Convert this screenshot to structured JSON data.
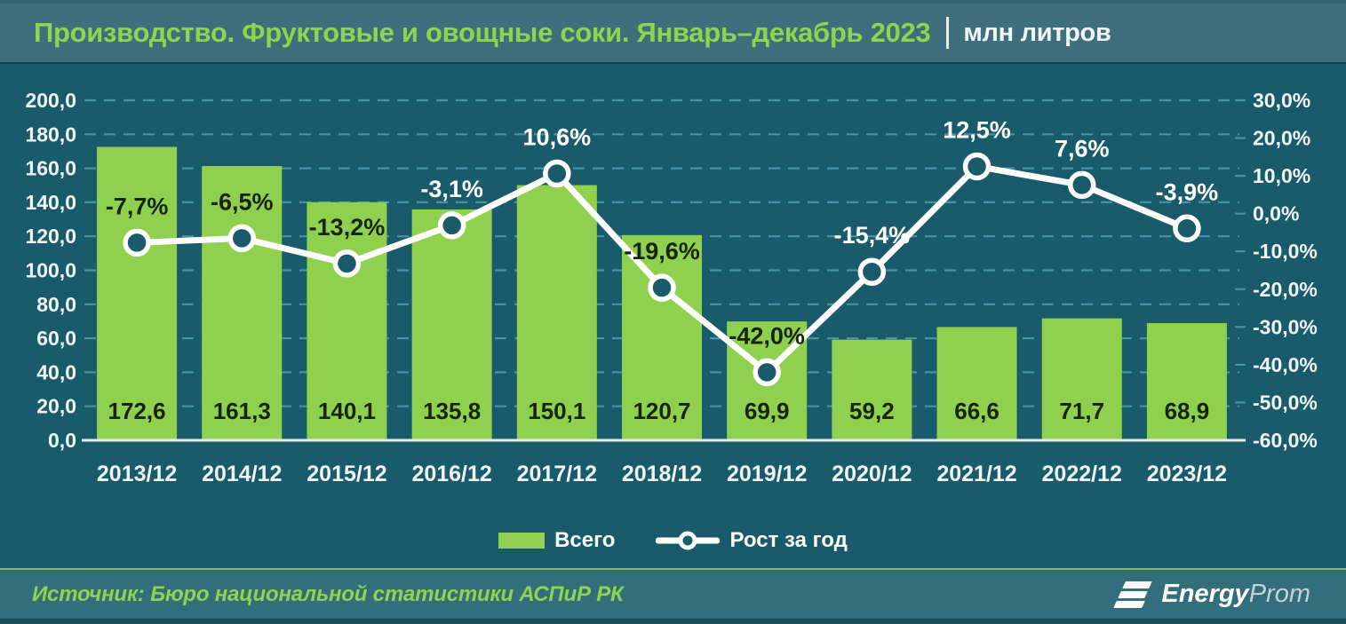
{
  "header": {
    "title_green": "Производство. Фруктовые и овощные соки. Январь–декабрь 2023",
    "title_white": "млн литров"
  },
  "legend": {
    "items": [
      {
        "label": "Всего",
        "swatch": "bar-swatch"
      },
      {
        "label": "Рост за год",
        "swatch": "line-swatch"
      }
    ]
  },
  "footer": {
    "source": "Источник: Бюро национальной статистики АСПиР РК",
    "logo": {
      "icon": "energyprom-logo-icon",
      "brand_bold": "Energy",
      "brand_light": "Prom"
    }
  },
  "colors": {
    "background": "#1a5b6b",
    "header_bg": "#3f6e7c",
    "footer_bg": "#346e7c",
    "bar_green": "#8fd04f",
    "title_green": "#8ed44e",
    "grid": "#4792a5",
    "line_white": "#ffffff",
    "axis_text": "#f0f6f8",
    "dark_label": "#18230c",
    "axis_line": "#e8eef0"
  },
  "chart_data": {
    "type": "bar",
    "combo": "bar+line",
    "title": "Производство. Фруктовые и овощные соки. Январь–декабрь 2023, млн литров",
    "categories": [
      "2013/12",
      "2014/12",
      "2015/12",
      "2016/12",
      "2017/12",
      "2018/12",
      "2019/12",
      "2020/12",
      "2021/12",
      "2022/12",
      "2023/12"
    ],
    "series": [
      {
        "name": "Всего",
        "type": "bar",
        "axis": "left",
        "values": [
          172.6,
          161.3,
          140.1,
          135.8,
          150.1,
          120.7,
          69.9,
          59.2,
          66.6,
          71.7,
          68.9
        ],
        "labels": [
          "172,6",
          "161,3",
          "140,1",
          "135,8",
          "150,1",
          "120,7",
          "69,9",
          "59,2",
          "66,6",
          "71,7",
          "68,9"
        ]
      },
      {
        "name": "Рост за год",
        "type": "line",
        "axis": "right",
        "values": [
          -7.7,
          -6.5,
          -13.2,
          -3.1,
          10.6,
          -19.6,
          -42.0,
          -15.4,
          12.5,
          7.6,
          -3.9
        ],
        "labels": [
          "-7,7%",
          "-6,5%",
          "-13,2%",
          "-3,1%",
          "10,6%",
          "-19,6%",
          "-42,0%",
          "-15,4%",
          "12,5%",
          "7,6%",
          "-3,9%"
        ],
        "label_styles": [
          "dark",
          "dark",
          "dark",
          "light",
          "light",
          "dark",
          "dark",
          "light",
          "light",
          "light",
          "light"
        ]
      }
    ],
    "left_axis": {
      "min": 0,
      "max": 200,
      "step": 20,
      "tick_labels": [
        "200,0",
        "180,0",
        "160,0",
        "140,0",
        "120,0",
        "100,0",
        "80,0",
        "60,0",
        "40,0",
        "20,0",
        "0,0"
      ]
    },
    "right_axis": {
      "min": -60,
      "max": 30,
      "step": 10,
      "tick_labels": [
        "30,0%",
        "20,0%",
        "10,0%",
        "0,0%",
        "-10,0%",
        "-20,0%",
        "-30,0%",
        "-40,0%",
        "-50,0%",
        "-60,0%"
      ]
    },
    "grid": "dashed-horizontal",
    "legend_position": "bottom"
  }
}
